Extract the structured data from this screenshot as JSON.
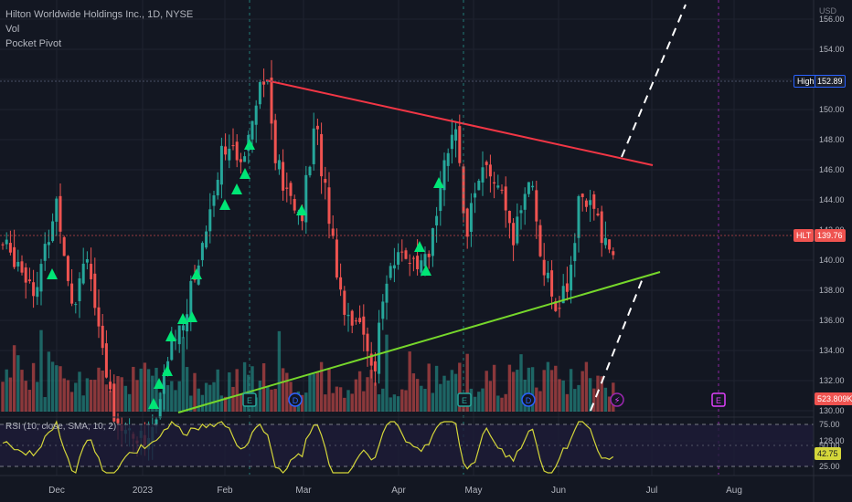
{
  "legend": {
    "title": "Hilton Worldwide Holdings Inc., 1D, NYSE",
    "vol": "Vol",
    "indicator": "Pocket Pivot"
  },
  "price_axis": {
    "currency": "USD",
    "ticks": [
      "156.00",
      "154.00",
      "152.00",
      "150.00",
      "148.00",
      "146.00",
      "144.00",
      "142.00",
      "140.00",
      "138.00",
      "136.00",
      "134.00",
      "132.00",
      "130.00",
      "128.00"
    ]
  },
  "high_tag": {
    "label": "High",
    "value": "152.89"
  },
  "last_tag": {
    "label": "HLT",
    "value": "139.76"
  },
  "volume_tag": "523.809K",
  "rsi": {
    "label": "RSI (10, close, SMA, 10, 2)",
    "ticks": [
      "75.00",
      "50.00",
      "25.00"
    ],
    "value": "42.75"
  },
  "time_axis": [
    "Dec",
    "2023",
    "Feb",
    "Mar",
    "Apr",
    "May",
    "Jun",
    "Jul",
    "Aug"
  ],
  "event_markers": [
    "E",
    "D",
    "E",
    "D",
    "E"
  ],
  "colors": {
    "background": "#131722",
    "up": "#26a69a",
    "down": "#ef5350",
    "resistance": "#f23645",
    "support": "#76d72b",
    "signal": "#00e676",
    "rsi": "#d4d63a"
  },
  "chart_data": {
    "type": "candlestick",
    "symbol": "HLT",
    "timeframe": "1D",
    "ylim": [
      127,
      157
    ],
    "high": 152.89,
    "last": 139.76
  }
}
